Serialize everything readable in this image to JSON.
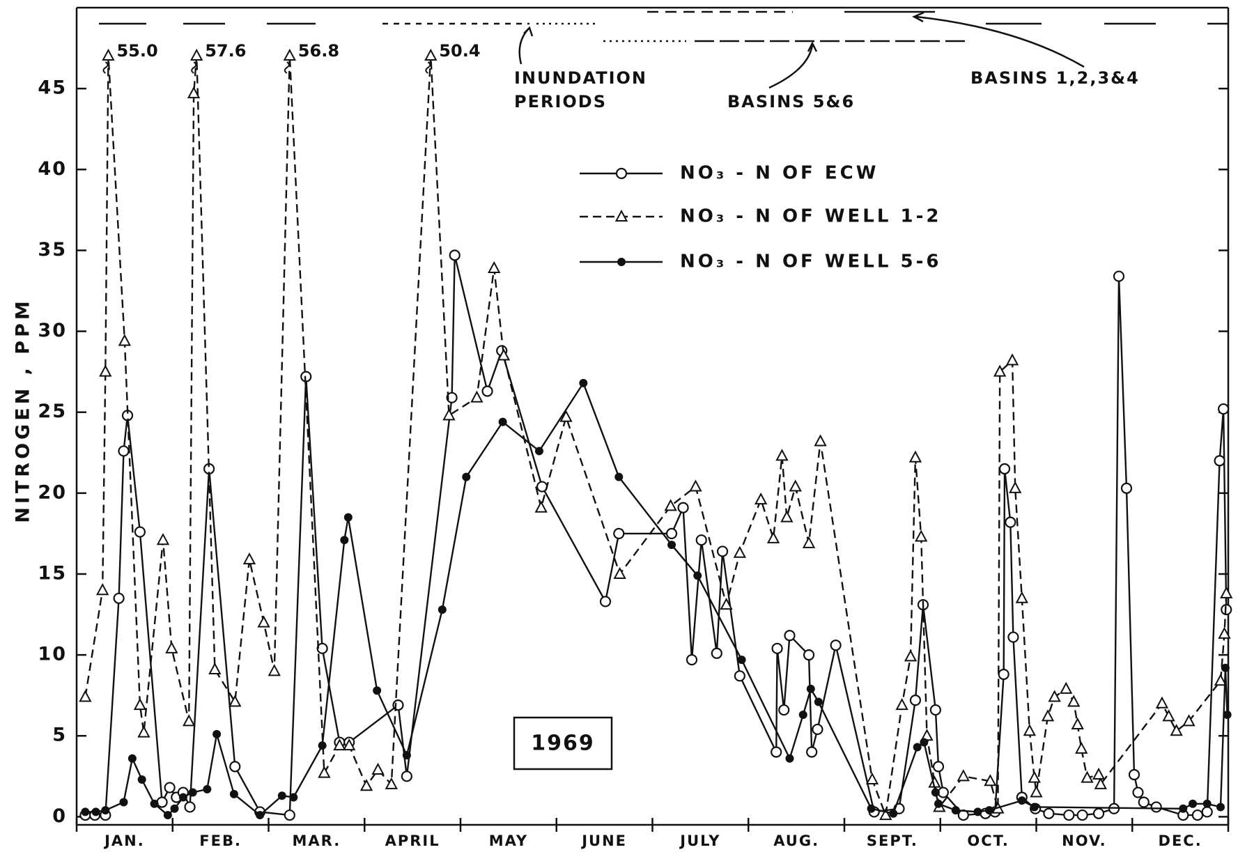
{
  "chart_data": {
    "type": "line",
    "y_label": "NITROGEN , PPM",
    "year_box": "1969",
    "annotations": {
      "inundation": [
        "INUNDATION",
        "PERIODS"
      ],
      "basins_5_6": "BASINS 5&6",
      "basins_1_4": "BASINS 1,2,3&4"
    },
    "categories": [
      "JAN.",
      "FEB.",
      "MAR.",
      "APRIL",
      "MAY",
      "JUNE",
      "JULY",
      "AUG.",
      "SEPT.",
      "OCT.",
      "NOV.",
      "DEC."
    ],
    "xlim": [
      0,
      12
    ],
    "ylim": [
      -0.5,
      50
    ],
    "yticks": [
      0,
      5,
      10,
      15,
      20,
      25,
      30,
      35,
      40,
      45
    ],
    "series": [
      {
        "name": "NO₃ - N OF ECW",
        "color": "#111111",
        "marker": "open-circle",
        "line_style": "solid",
        "x": [
          0.09,
          0.19,
          0.3,
          0.44,
          0.49,
          0.53,
          0.66,
          0.89,
          0.97,
          1.04,
          1.11,
          1.18,
          1.38,
          1.65,
          1.91,
          2.22,
          2.39,
          2.56,
          2.74,
          2.84,
          3.35,
          3.44,
          3.91,
          3.94,
          4.28,
          4.43,
          4.85,
          5.51,
          5.65,
          6.2,
          6.32,
          6.41,
          6.51,
          6.67,
          6.73,
          6.91,
          7.29,
          7.3,
          7.37,
          7.43,
          7.63,
          7.66,
          7.72,
          7.91,
          8.31,
          8.57,
          8.74,
          8.82,
          8.95,
          8.98,
          9.03,
          9.24,
          9.47,
          9.57,
          9.66,
          9.67,
          9.73,
          9.76,
          9.85,
          9.99,
          10.13,
          10.34,
          10.48,
          10.65,
          10.81,
          10.86,
          10.94,
          11.02,
          11.06,
          11.12,
          11.25,
          11.53,
          11.68,
          11.78,
          11.91,
          11.95,
          11.98
        ],
        "values": [
          0.1,
          0.1,
          0.1,
          13.5,
          22.6,
          24.8,
          17.6,
          0.9,
          1.8,
          1.2,
          1.5,
          0.6,
          21.5,
          3.1,
          0.3,
          0.1,
          27.2,
          10.4,
          4.6,
          4.6,
          6.9,
          2.5,
          25.9,
          34.7,
          26.3,
          28.8,
          20.4,
          13.3,
          17.5,
          17.5,
          19.1,
          9.7,
          17.1,
          10.1,
          16.4,
          8.7,
          4.0,
          10.4,
          6.6,
          11.2,
          10.0,
          4.0,
          5.4,
          10.6,
          0.3,
          0.5,
          7.2,
          13.1,
          6.6,
          3.1,
          1.5,
          0.1,
          0.2,
          0.3,
          8.8,
          21.5,
          18.2,
          11.1,
          1.2,
          0.5,
          0.2,
          0.1,
          0.1,
          0.2,
          0.5,
          33.4,
          20.3,
          2.6,
          1.5,
          0.9,
          0.6,
          0.1,
          0.1,
          0.3,
          22.0,
          25.2,
          12.8
        ]
      },
      {
        "name": "NO₃ - N OF WELL 1-2",
        "color": "#111111",
        "marker": "triangle",
        "line_style": "dashed",
        "x": [
          0.09,
          0.27,
          0.3,
          0.33,
          0.5,
          0.66,
          0.7,
          0.9,
          0.99,
          1.17,
          1.22,
          1.25,
          1.44,
          1.65,
          1.8,
          1.95,
          2.06,
          2.22,
          2.58,
          2.74,
          2.84,
          3.02,
          3.14,
          3.28,
          3.69,
          3.88,
          4.17,
          4.35,
          4.45,
          4.84,
          5.1,
          5.66,
          6.19,
          6.45,
          6.77,
          6.91,
          7.13,
          7.26,
          7.35,
          7.4,
          7.49,
          7.63,
          7.75,
          8.29,
          8.43,
          8.6,
          8.69,
          8.74,
          8.8,
          8.86,
          8.94,
          8.99,
          9.24,
          9.52,
          9.6,
          9.62,
          9.75,
          9.78,
          9.85,
          9.93,
          9.98,
          10.0,
          10.12,
          10.19,
          10.31,
          10.39,
          10.43,
          10.47,
          10.53,
          10.65,
          10.67,
          11.31,
          11.38,
          11.46,
          11.59,
          11.92,
          11.96,
          11.98
        ],
        "values": [
          7.4,
          14.0,
          27.5,
          55.0,
          29.4,
          6.9,
          5.2,
          17.1,
          10.4,
          5.9,
          44.7,
          57.6,
          9.1,
          7.1,
          15.9,
          12.0,
          9.0,
          56.8,
          2.7,
          4.4,
          4.4,
          1.9,
          2.9,
          2.0,
          50.4,
          24.8,
          25.9,
          33.9,
          28.5,
          19.1,
          24.7,
          15.0,
          19.2,
          20.4,
          13.1,
          16.3,
          19.6,
          17.2,
          22.3,
          18.5,
          20.4,
          16.9,
          23.2,
          2.3,
          0.1,
          6.9,
          9.9,
          22.2,
          17.3,
          5.0,
          2.1,
          0.6,
          2.5,
          2.2,
          0.5,
          27.5,
          28.2,
          20.3,
          13.5,
          5.3,
          2.4,
          1.5,
          6.2,
          7.4,
          7.9,
          7.1,
          5.7,
          4.2,
          2.4,
          2.6,
          2.0,
          7.0,
          6.2,
          5.3,
          5.9,
          8.4,
          11.3,
          13.8
        ],
        "value_labels": [
          null,
          null,
          null,
          "55.0",
          null,
          null,
          null,
          null,
          null,
          null,
          null,
          "57.6",
          null,
          null,
          null,
          null,
          null,
          "56.8",
          null,
          null,
          null,
          null,
          null,
          null,
          "50.4",
          null,
          null,
          null,
          null,
          null,
          null,
          null,
          null,
          null,
          null,
          null,
          null,
          null,
          null,
          null,
          null,
          null,
          null,
          null,
          null,
          null,
          null,
          null,
          null,
          null,
          null,
          null,
          null,
          null,
          null,
          null,
          null,
          null,
          null,
          null,
          null,
          null,
          null,
          null,
          null,
          null,
          null,
          null,
          null,
          null,
          null,
          null,
          null,
          null,
          null,
          null,
          null,
          null
        ]
      },
      {
        "name": "NO₃ - N OF WELL 5-6",
        "color": "#111111",
        "marker": "filled-circle",
        "line_style": "solid",
        "x": [
          0.09,
          0.2,
          0.3,
          0.49,
          0.58,
          0.68,
          0.81,
          0.95,
          1.02,
          1.11,
          1.21,
          1.36,
          1.46,
          1.64,
          1.91,
          2.14,
          2.26,
          2.56,
          2.79,
          2.83,
          3.13,
          3.44,
          3.81,
          4.06,
          4.44,
          4.82,
          5.28,
          5.65,
          6.2,
          6.47,
          6.93,
          7.43,
          7.57,
          7.65,
          7.73,
          8.28,
          8.51,
          8.76,
          8.83,
          8.95,
          8.98,
          9.16,
          9.39,
          9.51,
          9.85,
          9.98,
          11.53,
          11.63,
          11.78,
          11.92,
          11.97,
          11.99
        ],
        "values": [
          0.3,
          0.3,
          0.4,
          0.9,
          3.6,
          2.3,
          0.8,
          0.1,
          0.5,
          1.2,
          1.5,
          1.7,
          5.1,
          1.4,
          0.1,
          1.3,
          1.2,
          4.4,
          17.1,
          18.5,
          7.8,
          3.8,
          12.8,
          21.0,
          24.4,
          22.6,
          26.8,
          21.0,
          16.8,
          14.9,
          9.7,
          3.6,
          6.3,
          7.9,
          7.1,
          0.5,
          0.2,
          4.3,
          4.6,
          1.5,
          0.8,
          0.4,
          0.3,
          0.4,
          1.0,
          0.6,
          0.5,
          0.8,
          0.8,
          0.6,
          9.2,
          6.3
        ]
      }
    ]
  }
}
